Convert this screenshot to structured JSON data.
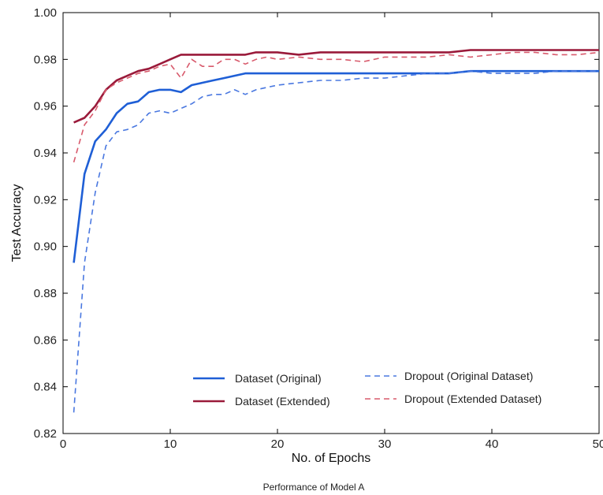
{
  "chart_data": {
    "type": "line",
    "caption": "Performance of Model A",
    "xlabel": "No. of Epochs",
    "ylabel": "Test Accuracy",
    "xlim": [
      0,
      50
    ],
    "ylim": [
      0.82,
      1.0
    ],
    "xticks": [
      0,
      10,
      20,
      30,
      40,
      50
    ],
    "yticks": [
      0.82,
      0.84,
      0.86,
      0.88,
      0.9,
      0.92,
      0.94,
      0.96,
      0.98,
      1.0
    ],
    "xtick_labels": [
      "0",
      "10",
      "20",
      "30",
      "40",
      "50"
    ],
    "ytick_labels": [
      "0.82",
      "0.84",
      "0.86",
      "0.88",
      "0.90",
      "0.92",
      "0.94",
      "0.96",
      "0.98",
      "1.00"
    ],
    "grid": false,
    "legend": {
      "placement": "lower-right",
      "columns": 2
    },
    "series": [
      {
        "name": "Dataset (Original)",
        "color": "#1f5fd6",
        "style": "solid",
        "x": [
          1,
          2,
          3,
          4,
          5,
          6,
          7,
          8,
          9,
          10,
          11,
          12,
          13,
          14,
          15,
          16,
          17,
          18,
          19,
          20,
          22,
          24,
          26,
          28,
          30,
          32,
          34,
          36,
          38,
          40,
          42,
          44,
          46,
          48,
          50
        ],
        "y": [
          0.893,
          0.931,
          0.945,
          0.95,
          0.957,
          0.961,
          0.962,
          0.966,
          0.967,
          0.967,
          0.966,
          0.969,
          0.97,
          0.971,
          0.972,
          0.973,
          0.974,
          0.974,
          0.974,
          0.974,
          0.974,
          0.974,
          0.974,
          0.974,
          0.974,
          0.974,
          0.974,
          0.974,
          0.975,
          0.975,
          0.975,
          0.975,
          0.975,
          0.975,
          0.975
        ]
      },
      {
        "name": "Dataset (Extended)",
        "color": "#9a1a3a",
        "style": "solid",
        "x": [
          1,
          2,
          3,
          4,
          5,
          6,
          7,
          8,
          9,
          10,
          11,
          12,
          13,
          14,
          15,
          16,
          17,
          18,
          19,
          20,
          22,
          24,
          26,
          28,
          30,
          32,
          34,
          36,
          38,
          40,
          42,
          44,
          46,
          48,
          50
        ],
        "y": [
          0.953,
          0.955,
          0.96,
          0.967,
          0.971,
          0.973,
          0.975,
          0.976,
          0.978,
          0.98,
          0.982,
          0.982,
          0.982,
          0.982,
          0.982,
          0.982,
          0.982,
          0.983,
          0.983,
          0.983,
          0.982,
          0.983,
          0.983,
          0.983,
          0.983,
          0.983,
          0.983,
          0.983,
          0.984,
          0.984,
          0.984,
          0.984,
          0.984,
          0.984,
          0.984
        ]
      },
      {
        "name": "Dropout (Original Dataset)",
        "color": "#4a78e0",
        "style": "dashed",
        "x": [
          1,
          2,
          3,
          4,
          5,
          6,
          7,
          8,
          9,
          10,
          11,
          12,
          13,
          14,
          15,
          16,
          17,
          18,
          19,
          20,
          22,
          24,
          26,
          28,
          30,
          32,
          34,
          36,
          38,
          40,
          42,
          44,
          46,
          48,
          50
        ],
        "y": [
          0.829,
          0.893,
          0.923,
          0.943,
          0.949,
          0.95,
          0.952,
          0.957,
          0.958,
          0.957,
          0.959,
          0.961,
          0.964,
          0.965,
          0.965,
          0.967,
          0.965,
          0.967,
          0.968,
          0.969,
          0.97,
          0.971,
          0.971,
          0.972,
          0.972,
          0.973,
          0.974,
          0.974,
          0.975,
          0.974,
          0.974,
          0.974,
          0.975,
          0.975,
          0.975
        ]
      },
      {
        "name": "Dropout (Extended Dataset)",
        "color": "#d85a6c",
        "style": "dashed",
        "x": [
          1,
          2,
          3,
          4,
          5,
          6,
          7,
          8,
          9,
          10,
          11,
          12,
          13,
          14,
          15,
          16,
          17,
          18,
          19,
          20,
          22,
          24,
          26,
          28,
          30,
          32,
          34,
          36,
          38,
          40,
          42,
          44,
          46,
          48,
          50
        ],
        "y": [
          0.936,
          0.952,
          0.958,
          0.967,
          0.97,
          0.972,
          0.974,
          0.975,
          0.977,
          0.978,
          0.972,
          0.98,
          0.977,
          0.977,
          0.98,
          0.98,
          0.978,
          0.98,
          0.981,
          0.98,
          0.981,
          0.98,
          0.98,
          0.979,
          0.981,
          0.981,
          0.981,
          0.982,
          0.981,
          0.982,
          0.983,
          0.983,
          0.982,
          0.982,
          0.983
        ]
      }
    ]
  }
}
